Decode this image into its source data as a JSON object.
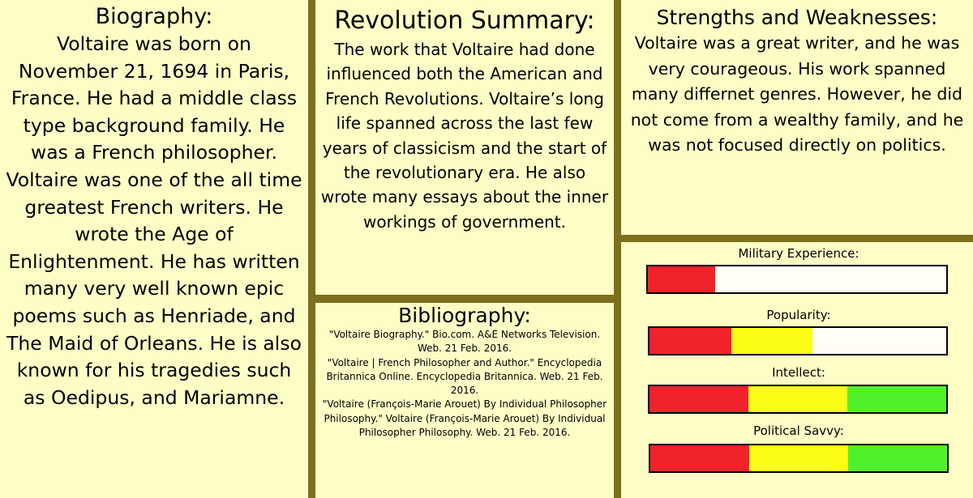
{
  "biography": {
    "title": "Biography:",
    "body": "Voltaire was born on November 21, 1694 in Paris, France. He had a middle class type background family.  He was a French philosopher. Voltaire was one of the all time greatest French writers. He wrote the Age of Enlightenment. He has written many very well known epic poems such as Henriade, and The Maid of Orleans. He is also known for his tragedies such as Oedipus, and Mariamne."
  },
  "revolution_summary": {
    "title": "Revolution Summary:",
    "body": "The work that Voltaire had done influenced both the American and French Revolutions. Voltaire’s long life spanned across the last few years of classicism and the start of the revolutionary era. He also wrote many essays about the inner workings of government."
  },
  "bibliography": {
    "title": "Bibliography:",
    "citations": [
      "\"Voltaire Biography.\" Bio.com. A&E Networks Television. Web. 21 Feb. 2016.",
      "\"Voltaire | French Philosopher and Author.\" Encyclopedia Britannica Online. Encyclopedia Britannica. Web. 21 Feb. 2016.",
      "\"Voltaire (François-Marie Arouet) By Individual Philosopher Philosophy.\" Voltaire (François-Marie Arouet) By Individual Philosopher Philosophy. Web. 21 Feb. 2016."
    ]
  },
  "strengths_weaknesses": {
    "title": "Strengths and Weaknesses:",
    "body": "Voltaire was a great writer, and he was very courageous. His work spanned many differnet genres. However, he did not come from a wealthy family, and he was not focused directly on politics."
  },
  "stats": [
    {
      "label": "Military Experience:",
      "level": 0.225,
      "segments": [
        "red"
      ]
    },
    {
      "label": "Popularity:",
      "level": 0.55,
      "segments": [
        "red",
        "yellow"
      ]
    },
    {
      "label": "Intellect:",
      "level": 1.0,
      "segments": [
        "red",
        "yellow",
        "green"
      ]
    },
    {
      "label": "Political Savvy:",
      "level": 1.0,
      "segments": [
        "red",
        "yellow",
        "green"
      ]
    }
  ],
  "colors": {
    "background": "#fffdc6",
    "divider": "#7d6f1b",
    "red": "#f0232a",
    "yellow": "#fcfd17",
    "green": "#51f12a"
  }
}
